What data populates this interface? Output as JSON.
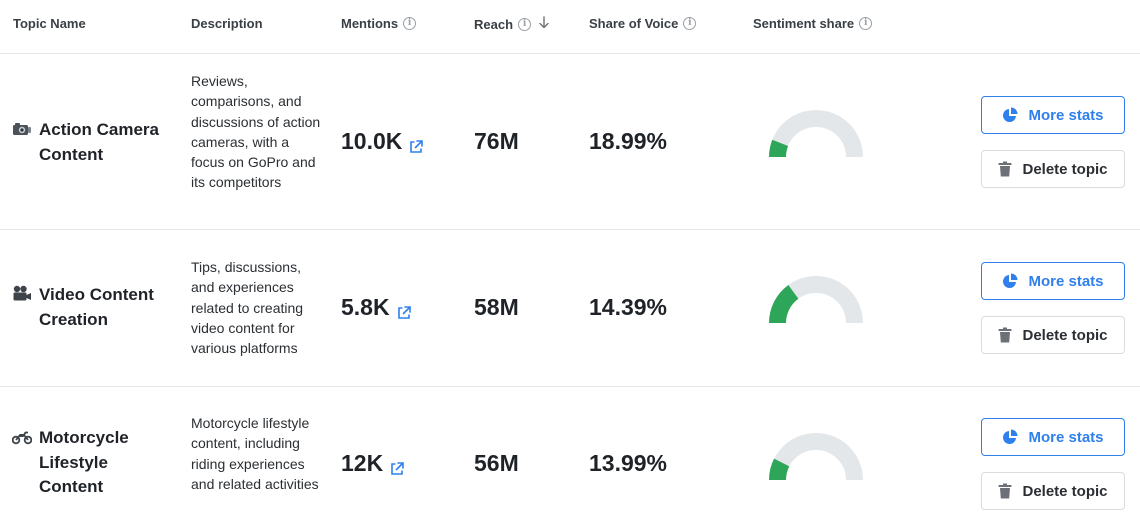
{
  "columns": {
    "topic": "Topic Name",
    "description": "Description",
    "mentions": "Mentions",
    "reach": "Reach",
    "share_of_voice": "Share of Voice",
    "sentiment": "Sentiment share"
  },
  "header_icons": {
    "info": "info-icon",
    "sort": "arrow-down-icon"
  },
  "topics": [
    {
      "icon": "camera-icon",
      "name": "Action Camera Content",
      "description": "Reviews, comparisons, and discussions of action cameras, with a focus on GoPro and its competitors",
      "mentions": "10.0K",
      "reach": "76M",
      "share_of_voice": "18.99%",
      "sentiment": {
        "positive": 0.12,
        "negative": 0.1
      },
      "more_label": "More stats",
      "delete_label": "Delete topic"
    },
    {
      "icon": "movie-camera-icon",
      "name": "Video Content Creation",
      "description": "Tips, discussions, and experiences related to creating video content for various platforms",
      "mentions": "5.8K",
      "reach": "58M",
      "share_of_voice": "14.39%",
      "sentiment": {
        "positive": 0.3,
        "negative": 0.08
      },
      "more_label": "More stats",
      "delete_label": "Delete topic"
    },
    {
      "icon": "motorcycle-icon",
      "name": "Motorcycle Lifestyle Content",
      "description": "Motorcycle lifestyle content, including riding experiences and related activities",
      "mentions": "12K",
      "reach": "56M",
      "share_of_voice": "13.99%",
      "sentiment": {
        "positive": 0.15,
        "negative": 0.08
      },
      "more_label": "More stats",
      "delete_label": "Delete topic"
    }
  ],
  "colors": {
    "accent": "#2f80ed",
    "positive": "#2ea65a",
    "negative": "#d6374a",
    "neutral": "#e4e7ea"
  }
}
